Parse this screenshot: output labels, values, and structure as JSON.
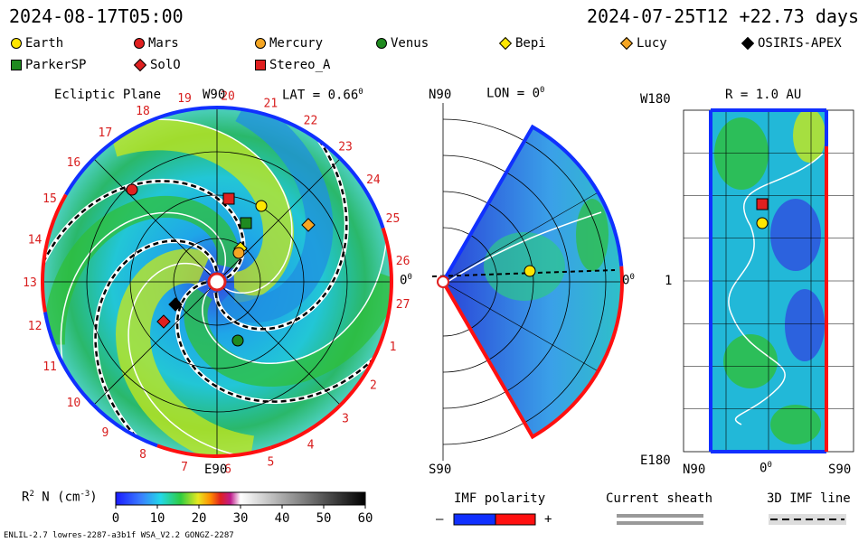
{
  "header": {
    "left_time": "2024-08-17T05:00",
    "right_time": "2024-07-25T12 +22.73 days"
  },
  "legend": [
    {
      "name": "Earth",
      "color": "#ffe600",
      "shape": "circle"
    },
    {
      "name": "Mars",
      "color": "#e02020",
      "shape": "circle"
    },
    {
      "name": "Mercury",
      "color": "#f5a623",
      "shape": "circle"
    },
    {
      "name": "Venus",
      "color": "#1f8a1f",
      "shape": "circle"
    },
    {
      "name": "Bepi",
      "color": "#ffe600",
      "shape": "diamond"
    },
    {
      "name": "Lucy",
      "color": "#f5a623",
      "shape": "diamond"
    },
    {
      "name": "OSIRIS-APEX",
      "color": "#000000",
      "shape": "diamond"
    },
    {
      "name": "ParkerSP",
      "color": "#1f8a1f",
      "shape": "square"
    },
    {
      "name": "SolO",
      "color": "#e02020",
      "shape": "diamond"
    },
    {
      "name": "Stereo_A",
      "color": "#e02020",
      "shape": "square"
    }
  ],
  "ecliptic": {
    "title": "Ecliptic Plane",
    "top_label": "W90",
    "bottom_label": "E90",
    "right_label": "0",
    "right_sup": "0",
    "lat_label": "LAT = 0.66",
    "lat_sup": "0",
    "rotation_numbers": [
      "19",
      "20",
      "21",
      "22",
      "23",
      "24",
      "25",
      "26",
      "27",
      "1",
      "2",
      "3",
      "4",
      "5",
      "6",
      "7",
      "8",
      "9",
      "10",
      "11",
      "12",
      "13",
      "14",
      "15",
      "16",
      "17",
      "18"
    ]
  },
  "meridional": {
    "top_left": "N90",
    "title": "LON = 0",
    "title_sup": "0",
    "bottom_left": "S90",
    "right_label": "0",
    "right_sup": "0"
  },
  "latlon": {
    "top_left": "W180",
    "title": "R = 1.0 AU",
    "mid_left": "1",
    "bottom_left": "E180",
    "bottom_labels": [
      "N90",
      "0",
      "S90"
    ],
    "bottom_sup": "0"
  },
  "colorbar": {
    "label_prefix": "R",
    "label_sup": "2",
    "label_mid": " N (cm",
    "label_sup2": "-3",
    "label_suffix": ")",
    "ticks": [
      "0",
      "10",
      "20",
      "30",
      "40",
      "50",
      "60"
    ]
  },
  "imf": {
    "title": "IMF polarity",
    "minus": "–",
    "plus": "+",
    "neg_color": "#1030ff",
    "pos_color": "#ff1010"
  },
  "sheath": {
    "title": "Current sheath"
  },
  "imf3d": {
    "title": "3D IMF line"
  },
  "footer": {
    "text": "ENLIL-2.7 lowres-2287-a3b1f WSA_V2.2 GONGZ-2287"
  },
  "colors": {
    "low": "#1f3fd8",
    "mid": "#22c4d6",
    "high": "#2fbf3a",
    "peak": "#d7e81a",
    "neg_sector": "#1030ff",
    "pos_sector": "#ff1010"
  }
}
